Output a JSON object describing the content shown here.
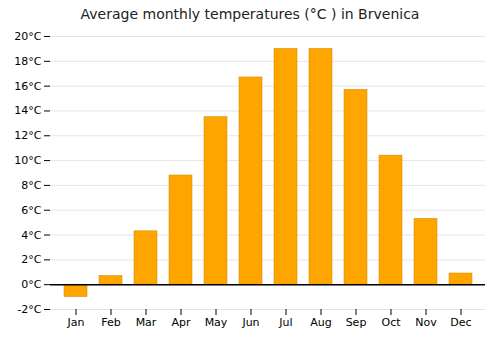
{
  "chart_data": {
    "type": "bar",
    "title": "Average monthly temperatures (°C ) in Brvenica",
    "categories": [
      "Jan",
      "Feb",
      "Mar",
      "Apr",
      "May",
      "Jun",
      "Jul",
      "Aug",
      "Sep",
      "Oct",
      "Nov",
      "Dec"
    ],
    "values": [
      -1.0,
      0.7,
      4.3,
      8.8,
      13.5,
      16.7,
      19.0,
      19.0,
      15.7,
      10.4,
      5.3,
      0.9
    ],
    "color": "#FFA500",
    "ylim": [
      -2,
      20
    ],
    "yticks": [
      {
        "value": -2,
        "label": "-2°C"
      },
      {
        "value": 0,
        "label": "0°C"
      },
      {
        "value": 2,
        "label": "2°C"
      },
      {
        "value": 4,
        "label": "4°C"
      },
      {
        "value": 6,
        "label": "6°C"
      },
      {
        "value": 8,
        "label": "8°C"
      },
      {
        "value": 10,
        "label": "10°C"
      },
      {
        "value": 12,
        "label": "12°C"
      },
      {
        "value": 14,
        "label": "14°C"
      },
      {
        "value": 16,
        "label": "16°C"
      },
      {
        "value": 18,
        "label": "18°C"
      },
      {
        "value": 20,
        "label": "20°C"
      }
    ],
    "grid": true
  }
}
